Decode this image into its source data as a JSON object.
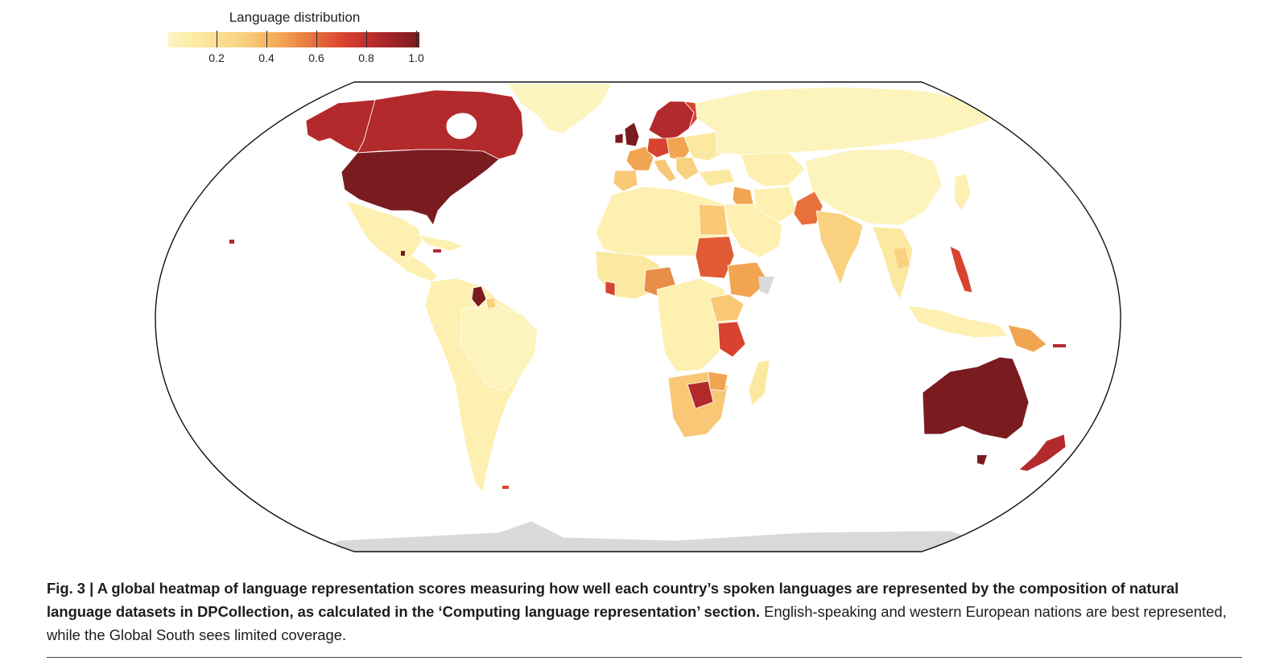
{
  "legend": {
    "title": "Language distribution",
    "ticks": [
      "0.2",
      "0.4",
      "0.6",
      "0.8",
      "1.0"
    ]
  },
  "colors": {
    "low": "#fdf5c0",
    "mid_low": "#f9d17f",
    "mid": "#f2a551",
    "mid_high": "#e8703c",
    "high": "#d8432f",
    "very_high": "#b32a2c",
    "max": "#7a1b20",
    "no_data": "#d9d9dc"
  },
  "caption": {
    "fig_label": "Fig. 3 | ",
    "bold_text": "A global heatmap of language representation scores measuring how well each country’s spoken languages are represented by the composition of natural language datasets in DPCollection, as calculated in the ‘Computing language representation’ section.",
    "normal_text": " English-speaking and western European nations are best represented, while the Global South sees limited coverage."
  }
}
